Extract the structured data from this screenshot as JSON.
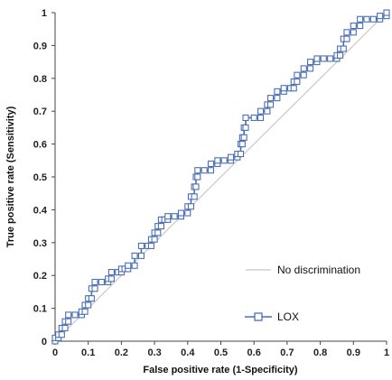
{
  "chart_data": {
    "type": "line",
    "xlabel": "False positive rate (1-Specificity)",
    "ylabel": "True positive rate (Sensitivity)",
    "xlim": [
      0,
      1
    ],
    "ylim": [
      0,
      1
    ],
    "x_ticks": [
      "0",
      "0.1",
      "0.2",
      "0.3",
      "0.4",
      "0.5",
      "0.6",
      "0.7",
      "0.8",
      "0.9",
      "1"
    ],
    "y_ticks": [
      "0",
      "0.1",
      "0.2",
      "0.3",
      "0.4",
      "0.5",
      "0.6",
      "0.7",
      "0.8",
      "0.9",
      "1"
    ],
    "grid": false,
    "legend_position": "bottom-right",
    "series": [
      {
        "name": "No discrimination",
        "color": "#c8c8c8",
        "marker": "none",
        "points": [
          [
            0,
            0
          ],
          [
            1,
            1
          ]
        ]
      },
      {
        "name": "LOX",
        "color": "#4a6fb5",
        "marker": "square",
        "points": [
          [
            0.0,
            0.0
          ],
          [
            0.0,
            0.01
          ],
          [
            0.01,
            0.01
          ],
          [
            0.01,
            0.02
          ],
          [
            0.02,
            0.02
          ],
          [
            0.02,
            0.04
          ],
          [
            0.03,
            0.04
          ],
          [
            0.03,
            0.06
          ],
          [
            0.04,
            0.06
          ],
          [
            0.04,
            0.08
          ],
          [
            0.06,
            0.08
          ],
          [
            0.08,
            0.08
          ],
          [
            0.08,
            0.09
          ],
          [
            0.09,
            0.09
          ],
          [
            0.09,
            0.11
          ],
          [
            0.1,
            0.11
          ],
          [
            0.1,
            0.13
          ],
          [
            0.11,
            0.13
          ],
          [
            0.11,
            0.16
          ],
          [
            0.12,
            0.16
          ],
          [
            0.12,
            0.18
          ],
          [
            0.14,
            0.18
          ],
          [
            0.16,
            0.18
          ],
          [
            0.16,
            0.19
          ],
          [
            0.17,
            0.19
          ],
          [
            0.17,
            0.21
          ],
          [
            0.19,
            0.21
          ],
          [
            0.2,
            0.21
          ],
          [
            0.2,
            0.22
          ],
          [
            0.21,
            0.22
          ],
          [
            0.22,
            0.22
          ],
          [
            0.22,
            0.23
          ],
          [
            0.24,
            0.23
          ],
          [
            0.24,
            0.26
          ],
          [
            0.26,
            0.26
          ],
          [
            0.26,
            0.29
          ],
          [
            0.28,
            0.29
          ],
          [
            0.29,
            0.29
          ],
          [
            0.29,
            0.31
          ],
          [
            0.3,
            0.31
          ],
          [
            0.3,
            0.33
          ],
          [
            0.31,
            0.33
          ],
          [
            0.31,
            0.35
          ],
          [
            0.32,
            0.35
          ],
          [
            0.32,
            0.37
          ],
          [
            0.33,
            0.37
          ],
          [
            0.34,
            0.37
          ],
          [
            0.34,
            0.38
          ],
          [
            0.36,
            0.38
          ],
          [
            0.38,
            0.38
          ],
          [
            0.38,
            0.39
          ],
          [
            0.4,
            0.39
          ],
          [
            0.4,
            0.41
          ],
          [
            0.41,
            0.41
          ],
          [
            0.41,
            0.44
          ],
          [
            0.42,
            0.44
          ],
          [
            0.42,
            0.47
          ],
          [
            0.425,
            0.47
          ],
          [
            0.425,
            0.5
          ],
          [
            0.43,
            0.5
          ],
          [
            0.43,
            0.52
          ],
          [
            0.45,
            0.52
          ],
          [
            0.47,
            0.52
          ],
          [
            0.47,
            0.54
          ],
          [
            0.49,
            0.54
          ],
          [
            0.49,
            0.55
          ],
          [
            0.51,
            0.55
          ],
          [
            0.53,
            0.55
          ],
          [
            0.53,
            0.56
          ],
          [
            0.55,
            0.56
          ],
          [
            0.55,
            0.57
          ],
          [
            0.56,
            0.57
          ],
          [
            0.56,
            0.6
          ],
          [
            0.565,
            0.6
          ],
          [
            0.565,
            0.62
          ],
          [
            0.57,
            0.62
          ],
          [
            0.57,
            0.65
          ],
          [
            0.575,
            0.65
          ],
          [
            0.575,
            0.68
          ],
          [
            0.6,
            0.68
          ],
          [
            0.62,
            0.68
          ],
          [
            0.62,
            0.7
          ],
          [
            0.64,
            0.7
          ],
          [
            0.64,
            0.72
          ],
          [
            0.65,
            0.72
          ],
          [
            0.65,
            0.74
          ],
          [
            0.67,
            0.74
          ],
          [
            0.67,
            0.76
          ],
          [
            0.69,
            0.76
          ],
          [
            0.69,
            0.77
          ],
          [
            0.71,
            0.77
          ],
          [
            0.72,
            0.77
          ],
          [
            0.72,
            0.79
          ],
          [
            0.73,
            0.79
          ],
          [
            0.73,
            0.81
          ],
          [
            0.75,
            0.81
          ],
          [
            0.75,
            0.83
          ],
          [
            0.77,
            0.83
          ],
          [
            0.77,
            0.85
          ],
          [
            0.79,
            0.85
          ],
          [
            0.79,
            0.86
          ],
          [
            0.81,
            0.86
          ],
          [
            0.83,
            0.86
          ],
          [
            0.85,
            0.86
          ],
          [
            0.85,
            0.87
          ],
          [
            0.86,
            0.87
          ],
          [
            0.86,
            0.89
          ],
          [
            0.87,
            0.89
          ],
          [
            0.87,
            0.92
          ],
          [
            0.88,
            0.92
          ],
          [
            0.88,
            0.94
          ],
          [
            0.9,
            0.94
          ],
          [
            0.9,
            0.96
          ],
          [
            0.92,
            0.96
          ],
          [
            0.92,
            0.98
          ],
          [
            0.94,
            0.98
          ],
          [
            0.96,
            0.98
          ],
          [
            0.98,
            0.98
          ],
          [
            0.98,
            0.99
          ],
          [
            1.0,
            0.99
          ],
          [
            1.0,
            1.0
          ]
        ]
      }
    ]
  }
}
